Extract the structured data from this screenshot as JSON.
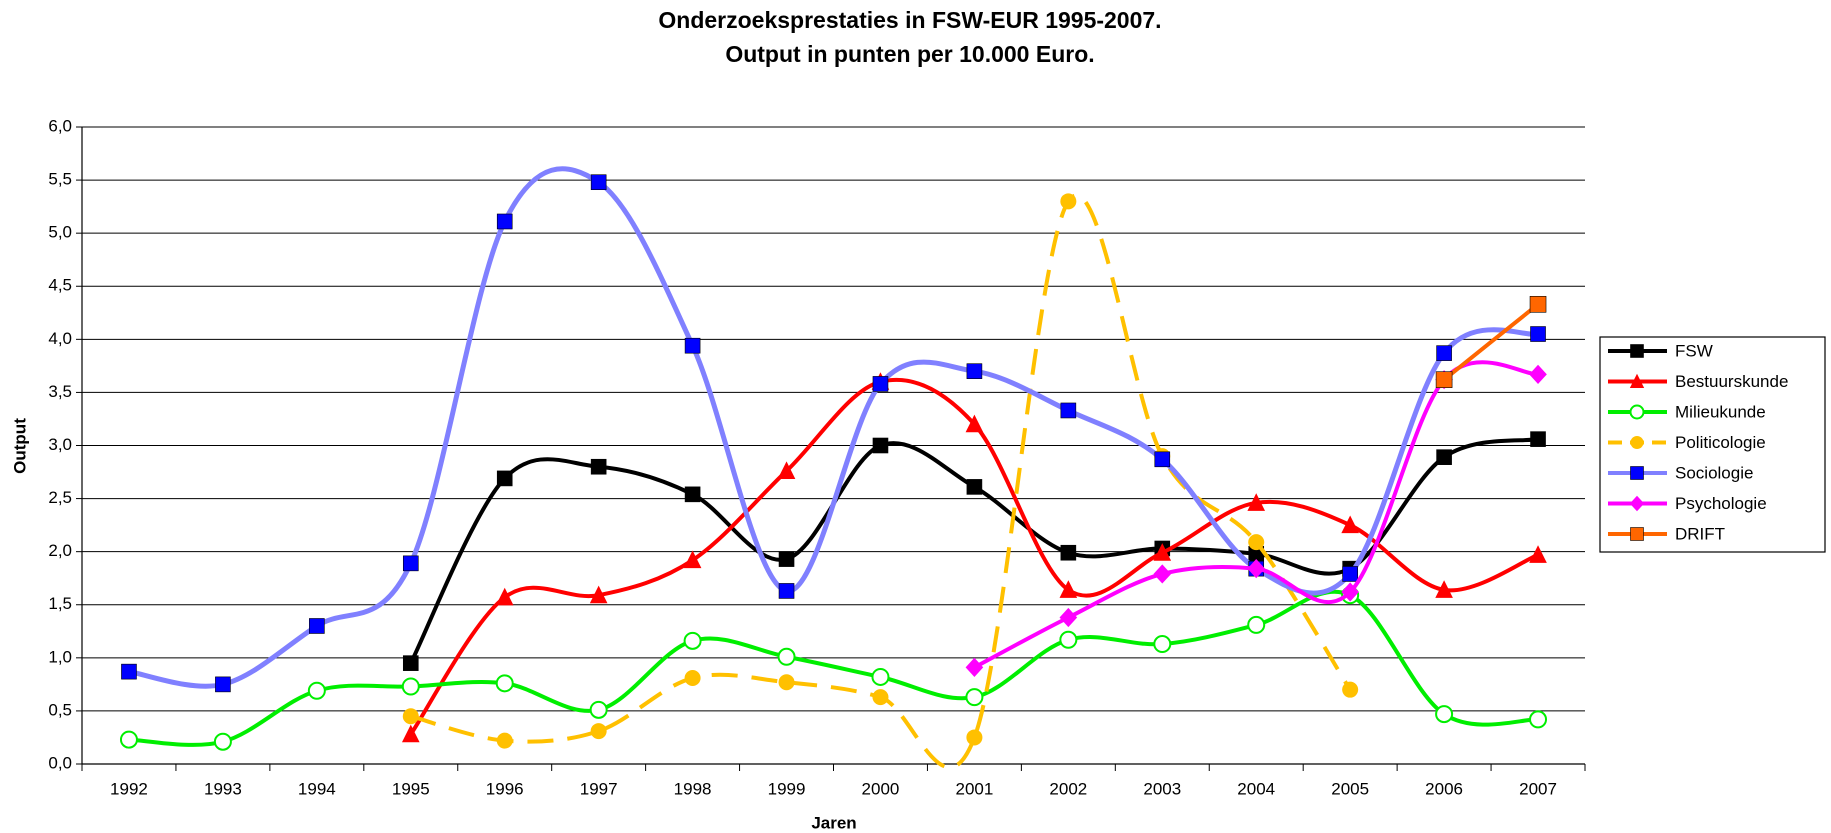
{
  "chart_data": {
    "type": "line",
    "title": "Onderzoeksprestaties in FSW-EUR 1995-2007.",
    "subtitle": "Output in punten per 10.000 Euro.",
    "x_label": "Jaren",
    "y_label": "Output",
    "categories": [
      "1992",
      "1993",
      "1994",
      "1995",
      "1996",
      "1997",
      "1998",
      "1999",
      "2000",
      "2001",
      "2002",
      "2003",
      "2004",
      "2005",
      "2006",
      "2007"
    ],
    "ylim": [
      0,
      6
    ],
    "yticks": [
      {
        "value": 0,
        "label": "0,0"
      },
      {
        "value": 0.5,
        "label": "0,5"
      },
      {
        "value": 1,
        "label": "1,0"
      },
      {
        "value": 1.5,
        "label": "1,5"
      },
      {
        "value": 2,
        "label": "2,0"
      },
      {
        "value": 2.5,
        "label": "2,5"
      },
      {
        "value": 3,
        "label": "3,0"
      },
      {
        "value": 3.5,
        "label": "3,5"
      },
      {
        "value": 4,
        "label": "4,0"
      },
      {
        "value": 4.5,
        "label": "4,5"
      },
      {
        "value": 5,
        "label": "5,0"
      },
      {
        "value": 5.5,
        "label": "5,5"
      },
      {
        "value": 6,
        "label": "6,0"
      }
    ],
    "grid": true,
    "smooth": true,
    "legend": "right",
    "series": [
      {
        "name": "FSW",
        "color": "#000000",
        "marker": "square",
        "values": [
          null,
          null,
          null,
          0.95,
          2.69,
          2.8,
          2.54,
          1.93,
          3.0,
          2.61,
          1.99,
          2.03,
          1.98,
          1.84,
          2.89,
          3.06
        ]
      },
      {
        "name": "Bestuurskunde",
        "color": "#ff0000",
        "marker": "triangle",
        "values": [
          null,
          null,
          null,
          0.28,
          1.57,
          1.59,
          1.92,
          2.76,
          3.6,
          3.2,
          1.64,
          1.99,
          2.46,
          2.25,
          1.64,
          1.97
        ]
      },
      {
        "name": "Milieukunde",
        "color": "#00ee00",
        "marker": "open-circle",
        "values": [
          0.23,
          0.21,
          0.69,
          0.73,
          0.76,
          0.51,
          1.16,
          1.01,
          0.82,
          0.63,
          1.17,
          1.13,
          1.31,
          1.59,
          0.47,
          0.42
        ]
      },
      {
        "name": "Politicologie",
        "color": "#ffc000",
        "marker": "circle",
        "dashed": true,
        "values": [
          null,
          null,
          null,
          0.45,
          0.22,
          0.31,
          0.81,
          0.77,
          0.63,
          0.25,
          5.3,
          2.9,
          2.09,
          0.7,
          null,
          null
        ]
      },
      {
        "name": "Sociologie",
        "color": "#8080ff",
        "marker_color": "#0000ff",
        "marker": "square",
        "values": [
          0.87,
          0.75,
          1.3,
          1.89,
          5.11,
          5.48,
          3.94,
          1.63,
          3.58,
          3.7,
          3.33,
          2.87,
          1.84,
          1.79,
          3.87,
          4.05
        ]
      },
      {
        "name": "Psychologie",
        "color": "#ff00ff",
        "marker": "diamond",
        "values": [
          null,
          null,
          null,
          null,
          null,
          null,
          null,
          null,
          null,
          0.91,
          1.38,
          1.79,
          1.84,
          1.62,
          3.62,
          3.67
        ]
      },
      {
        "name": "DRIFT",
        "color": "#ff6600",
        "marker": "square",
        "values": [
          null,
          null,
          null,
          null,
          null,
          null,
          null,
          null,
          null,
          null,
          null,
          null,
          null,
          null,
          3.62,
          4.33
        ]
      }
    ]
  }
}
